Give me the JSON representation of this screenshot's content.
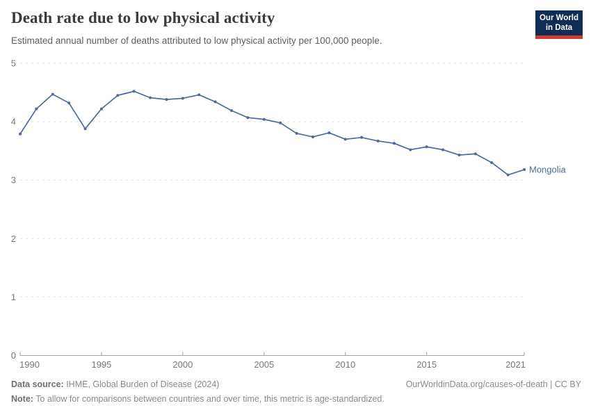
{
  "header": {
    "title": "Death rate due to low physical activity",
    "subtitle": "Estimated annual number of deaths attributed to low physical activity per 100,000 people.",
    "logo": {
      "line1": "Our World",
      "line2": "in Data",
      "bg_color": "#0d2d56",
      "accent_color": "#d1382f"
    }
  },
  "chart_data": {
    "type": "line",
    "title": "Death rate due to low physical activity",
    "xlabel": "",
    "ylabel": "",
    "x": [
      1990,
      1991,
      1992,
      1993,
      1994,
      1995,
      1996,
      1997,
      1998,
      1999,
      2000,
      2001,
      2002,
      2003,
      2004,
      2005,
      2006,
      2007,
      2008,
      2009,
      2010,
      2011,
      2012,
      2013,
      2014,
      2015,
      2016,
      2017,
      2018,
      2019,
      2020,
      2021
    ],
    "series": [
      {
        "name": "Mongolia",
        "color": "#4c6a9c",
        "values": [
          3.79,
          4.22,
          4.47,
          4.32,
          3.88,
          4.22,
          4.45,
          4.52,
          4.41,
          4.38,
          4.4,
          4.46,
          4.34,
          4.19,
          4.07,
          4.04,
          3.98,
          3.8,
          3.74,
          3.81,
          3.7,
          3.73,
          3.67,
          3.63,
          3.52,
          3.57,
          3.52,
          3.43,
          3.45,
          3.3,
          3.09,
          3.18
        ]
      }
    ],
    "ylim": [
      0,
      5
    ],
    "yticks": [
      0,
      1,
      2,
      3,
      4,
      5
    ],
    "xticks": [
      1990,
      1995,
      2000,
      2005,
      2010,
      2015,
      2021
    ],
    "grid": "horizontal-dashed",
    "legend": "end-of-line-label",
    "gridline_color": "#dedede",
    "axis_color": "#a1a1a1",
    "tick_label_color": "#787878"
  },
  "footer": {
    "datasource_label": "Data source:",
    "datasource_value": " IHME, Global Burden of Disease (2024)",
    "attribution": "OurWorldinData.org/causes-of-death | CC BY",
    "note_label": "Note:",
    "note_value": " To allow for comparisons between countries and over time, this metric is age-standardized."
  }
}
